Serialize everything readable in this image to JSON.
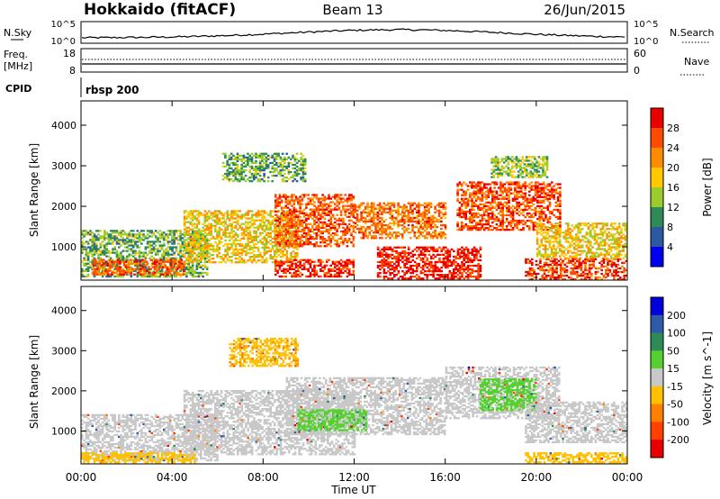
{
  "header": {
    "station": "Hokkaido (fitACF)",
    "beam": "Beam 13",
    "date": "26/Jun/2015"
  },
  "top_panels": {
    "nsky_label": "N.Sky",
    "nsky_ticks": [
      "10^5",
      "10^0"
    ],
    "nsearch_label": "N.Search",
    "nsearch_ticks": [
      "10^5",
      "10^0"
    ],
    "freq_label_1": "Freq.",
    "freq_label_2": "[MHz]",
    "freq_ticks": [
      "18",
      "8"
    ],
    "nave_label": "Nave",
    "nave_ticks": [
      "60",
      "0"
    ],
    "cpid_label": "CPID",
    "cpid_value": "rbsp 200"
  },
  "chart_data": [
    {
      "type": "heatmap",
      "title": "",
      "xlabel": "Time UT",
      "ylabel": "Slant Range [km]",
      "x_ticks": [
        "00:00",
        "04:00",
        "08:00",
        "12:00",
        "16:00",
        "20:00",
        "00:00"
      ],
      "y_ticks": [
        1000,
        2000,
        3000,
        4000
      ],
      "xlim_hours": [
        0,
        24
      ],
      "ylim_km": [
        180,
        4600
      ],
      "colorbar": {
        "label": "Power [dB]",
        "ticks": [
          "28",
          "24",
          "20",
          "16",
          "12",
          "8",
          "4"
        ],
        "colors": [
          "#e80000",
          "#ff4a00",
          "#ff8c00",
          "#ffc800",
          "#9ccc2c",
          "#2e8b57",
          "#2c5aa0",
          "#0000ee"
        ]
      },
      "regions": [
        {
          "t0": 0.0,
          "t1": 5.5,
          "r0": 250,
          "r1": 1400,
          "v": 12
        },
        {
          "t0": 0.5,
          "t1": 4.5,
          "r0": 300,
          "r1": 700,
          "v": 26
        },
        {
          "t0": 4.5,
          "t1": 9.5,
          "r0": 600,
          "r1": 1900,
          "v": 18
        },
        {
          "t0": 6.2,
          "t1": 9.8,
          "r0": 2600,
          "r1": 3300,
          "v": 12
        },
        {
          "t0": 8.5,
          "t1": 12.0,
          "r0": 1000,
          "r1": 2300,
          "v": 25
        },
        {
          "t0": 8.5,
          "t1": 12.0,
          "r0": 250,
          "r1": 700,
          "v": 28
        },
        {
          "t0": 12.0,
          "t1": 16.0,
          "r0": 1200,
          "r1": 2100,
          "v": 24
        },
        {
          "t0": 13.0,
          "t1": 17.5,
          "r0": 200,
          "r1": 1000,
          "v": 29
        },
        {
          "t0": 16.5,
          "t1": 21.0,
          "r0": 1400,
          "r1": 2600,
          "v": 26
        },
        {
          "t0": 18.0,
          "t1": 20.5,
          "r0": 2700,
          "r1": 3200,
          "v": 14
        },
        {
          "t0": 20.0,
          "t1": 24.0,
          "r0": 700,
          "r1": 1600,
          "v": 18
        },
        {
          "t0": 19.5,
          "t1": 24.0,
          "r0": 180,
          "r1": 700,
          "v": 27
        }
      ]
    },
    {
      "type": "heatmap",
      "title": "",
      "xlabel": "Time UT",
      "ylabel": "Slant Range [km]",
      "x_ticks": [
        "00:00",
        "04:00",
        "08:00",
        "12:00",
        "16:00",
        "20:00",
        "00:00"
      ],
      "y_ticks": [
        1000,
        2000,
        3000,
        4000
      ],
      "xlim_hours": [
        0,
        24
      ],
      "ylim_km": [
        180,
        4600
      ],
      "colorbar": {
        "label": "Velocity [m s^-1]",
        "ticks": [
          "200",
          "100",
          "50",
          "15",
          "-15",
          "-50",
          "-100",
          "-200"
        ],
        "colors": [
          "#0000dd",
          "#2e5aa8",
          "#2e8b57",
          "#55d030",
          "#c8c8c8",
          "#ffc000",
          "#ff8000",
          "#ff4000",
          "#e80000"
        ]
      },
      "regions": [
        {
          "t0": 0.0,
          "t1": 6.0,
          "r0": 250,
          "r1": 1400,
          "v": 0
        },
        {
          "t0": 4.5,
          "t1": 12.0,
          "r0": 400,
          "r1": 2000,
          "v": 0
        },
        {
          "t0": 6.5,
          "t1": 9.5,
          "r0": 2600,
          "r1": 3300,
          "v": -40
        },
        {
          "t0": 9.0,
          "t1": 16.0,
          "r0": 900,
          "r1": 2300,
          "v": 0
        },
        {
          "t0": 9.5,
          "t1": 12.5,
          "r0": 1000,
          "r1": 1500,
          "v": 30
        },
        {
          "t0": 16.0,
          "t1": 21.0,
          "r0": 1300,
          "r1": 2600,
          "v": 0
        },
        {
          "t0": 17.5,
          "t1": 20.0,
          "r0": 1500,
          "r1": 2300,
          "v": 30
        },
        {
          "t0": 19.5,
          "t1": 24.0,
          "r0": 700,
          "r1": 1700,
          "v": 0
        },
        {
          "t0": 19.5,
          "t1": 24.0,
          "r0": 200,
          "r1": 450,
          "v": -30
        },
        {
          "t0": 0.0,
          "t1": 5.0,
          "r0": 200,
          "r1": 450,
          "v": -30
        }
      ]
    }
  ]
}
